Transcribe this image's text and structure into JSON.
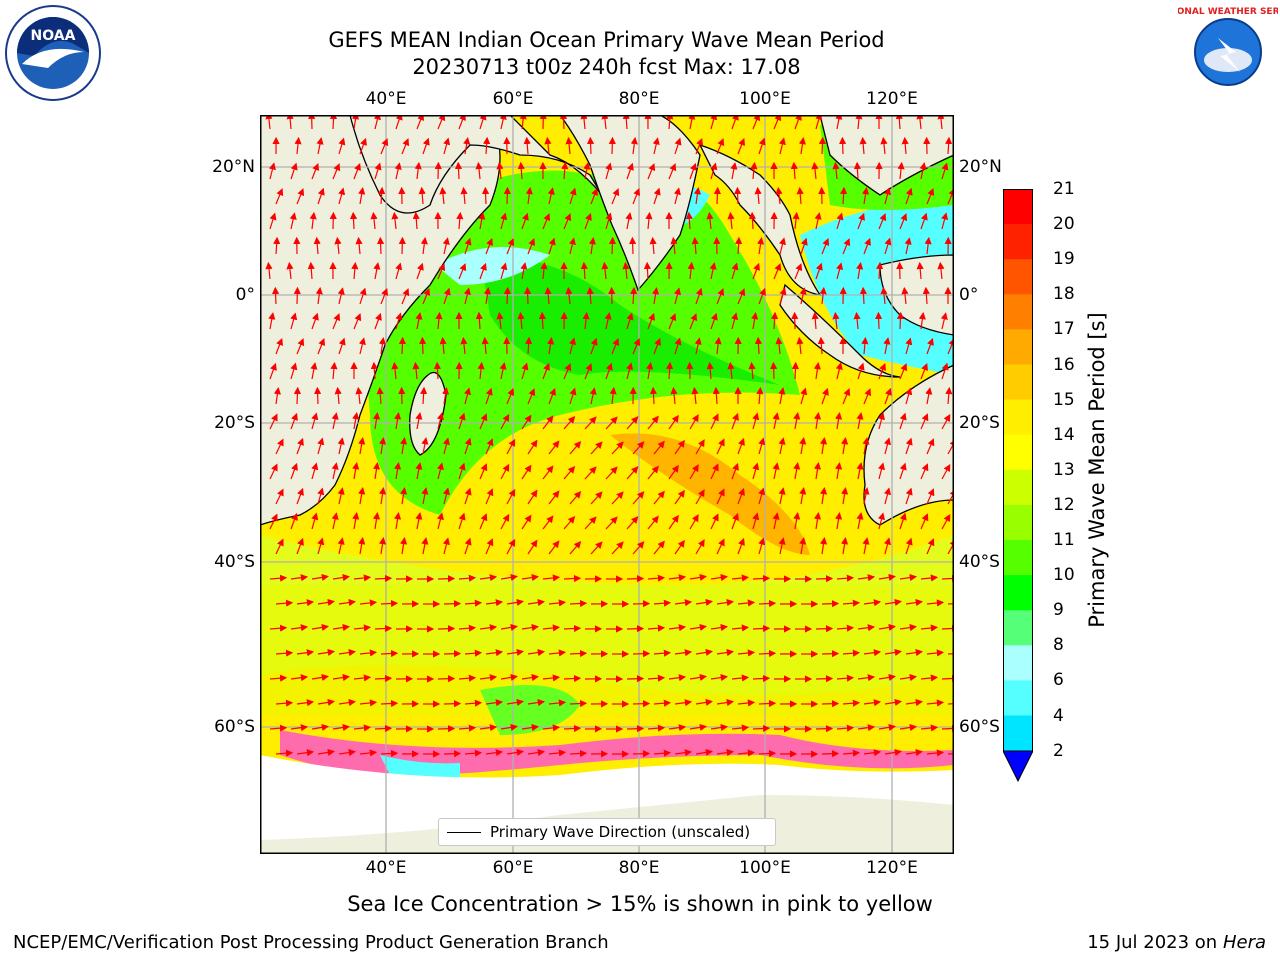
{
  "title": {
    "line1": "GEFS MEAN Indian Ocean Primary Wave Mean Period",
    "line2": "20230713 t00z 240h fcst   Max: 17.08"
  },
  "axes": {
    "lon_ticks": [
      "40°E",
      "60°E",
      "80°E",
      "100°E",
      "120°E"
    ],
    "lat_ticks": [
      "20°N",
      "0°",
      "20°S",
      "40°S",
      "60°S"
    ]
  },
  "legend": {
    "label": "Primary Wave Direction (unscaled)"
  },
  "colorbar": {
    "title": "Primary Wave Mean Period [s]",
    "labels": [
      "21",
      "20",
      "19",
      "18",
      "17",
      "16",
      "15",
      "14",
      "13",
      "12",
      "11",
      "10",
      "9",
      "8",
      "6",
      "4",
      "2"
    ],
    "colors": [
      "#ff0000",
      "#ff2200",
      "#ff5500",
      "#ff8000",
      "#ffaa00",
      "#ffcc00",
      "#ffee00",
      "#ffff00",
      "#ccff00",
      "#99ff00",
      "#55ff00",
      "#00ff00",
      "#55ff77",
      "#aaffff",
      "#55ffff",
      "#00e5ff",
      "#0088ff"
    ],
    "underflow_color": "#0000ff"
  },
  "chart_data": {
    "type": "heatmap",
    "title": "GEFS MEAN Indian Ocean Primary Wave Mean Period",
    "subtitle": "20230713 t00z 240h fcst   Max: 17.08",
    "variable": "Primary Wave Mean Period [s]",
    "max_value": 17.08,
    "lon_range": [
      20,
      130
    ],
    "lat_range": [
      -70,
      28
    ],
    "lon_ticks": [
      40,
      60,
      80,
      100,
      120
    ],
    "lat_ticks": [
      20,
      0,
      -20,
      -40,
      -60
    ],
    "color_levels": [
      2,
      4,
      6,
      8,
      9,
      10,
      11,
      12,
      13,
      14,
      15,
      16,
      17,
      18,
      19,
      20,
      21
    ],
    "grid": true,
    "legend_position": "bottom-center"
  },
  "footer": {
    "note": "Sea Ice Concentration > 15% is shown in pink to yellow",
    "org": "NCEP/EMC/Verification Post Processing Product Generation Branch",
    "date": "15 Jul 2023 on ",
    "machine": "Hera"
  },
  "logos": {
    "left_text": "NOAA",
    "right_text": "NATIONAL WEATHER SERVICE"
  }
}
